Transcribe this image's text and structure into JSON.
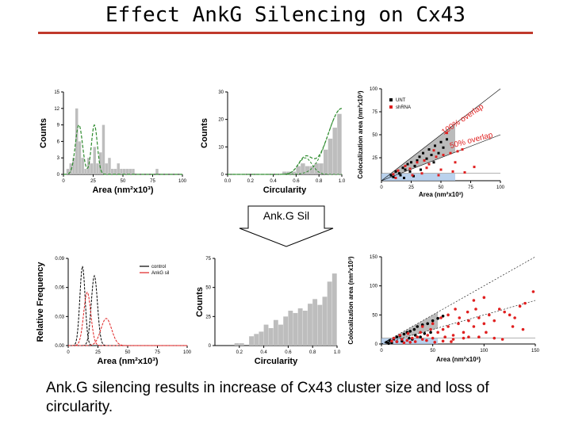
{
  "title": "Effect AnkG Silencing on Cx43",
  "callout": {
    "label": "Ank.G Sil"
  },
  "caption": "Ank.G silencing results in increase of Cx43 cluster size and loss of circularity.",
  "colors": {
    "rule": "#c0392b",
    "bars": "#bdbdbd",
    "fit": "#2e8b2e",
    "red": "#e02020",
    "shade": "#9e9e9e",
    "blue": "#a9c7e8"
  },
  "chart_data": [
    {
      "id": "top-area-histogram",
      "type": "bar",
      "xlabel": "Area (nm²x10³)",
      "ylabel": "Counts",
      "xlim": [
        0,
        100
      ],
      "ylim": [
        0,
        15
      ],
      "xticks": [
        "0",
        "25",
        "50",
        "75",
        "100"
      ],
      "yticks": [
        "0",
        "3",
        "6",
        "9",
        "12",
        "15"
      ],
      "bin_width": 2.5,
      "values": [
        0,
        1,
        2,
        3,
        12,
        6,
        3,
        1,
        3,
        2,
        5,
        2,
        4,
        9,
        2,
        3,
        1,
        1,
        2,
        1,
        1,
        1,
        1,
        1,
        0,
        0,
        0,
        0,
        0,
        0,
        0,
        1,
        0,
        0,
        0,
        0,
        0,
        0,
        0,
        0
      ],
      "fit_peaks": [
        {
          "mu": 13,
          "sigma": 3,
          "amp": 9
        },
        {
          "mu": 26,
          "sigma": 2.5,
          "amp": 9
        }
      ]
    },
    {
      "id": "top-circularity-histogram",
      "type": "bar",
      "xlabel": "Circularity",
      "ylabel": "Counts",
      "xlim": [
        0,
        1
      ],
      "ylim": [
        0,
        30
      ],
      "xticks": [
        "0.0",
        "0.2",
        "0.4",
        "0.6",
        "0.8",
        "1.0"
      ],
      "yticks": [
        "0",
        "10",
        "20",
        "30"
      ],
      "bin_width": 0.04,
      "values": [
        0,
        0,
        0,
        0,
        0,
        0,
        0,
        0,
        0,
        0,
        0,
        0,
        1,
        1,
        1,
        3,
        4,
        3,
        3,
        4,
        4,
        9,
        13,
        17,
        22
      ],
      "fit_peaks": [
        {
          "mu": 0.68,
          "sigma": 0.06,
          "amp": 6
        },
        {
          "mu": 1.0,
          "sigma": 0.12,
          "amp": 24
        }
      ]
    },
    {
      "id": "top-colocalization-scatter",
      "type": "scatter",
      "xlabel": "Area (nm²x10³)",
      "ylabel": "Colocalization area (nm²x10³)",
      "xlim": [
        0,
        100
      ],
      "ylim": [
        0,
        100
      ],
      "xticks": [
        "0",
        "25",
        "50",
        "75",
        "100"
      ],
      "yticks": [
        "25",
        "50",
        "75",
        "100"
      ],
      "legend": [
        "UNT",
        "shRNA"
      ],
      "annotations": [
        "100% overlap",
        "50% overlap"
      ],
      "series": [
        {
          "name": "UNT",
          "color": "#000000",
          "points": [
            [
              8,
              6
            ],
            [
              12,
              10
            ],
            [
              15,
              8
            ],
            [
              18,
              14
            ],
            [
              20,
              12
            ],
            [
              22,
              18
            ],
            [
              25,
              20
            ],
            [
              28,
              16
            ],
            [
              30,
              22
            ],
            [
              32,
              26
            ],
            [
              35,
              30
            ],
            [
              38,
              24
            ],
            [
              40,
              34
            ],
            [
              42,
              28
            ],
            [
              45,
              38
            ],
            [
              48,
              30
            ],
            [
              50,
              42
            ],
            [
              52,
              36
            ],
            [
              10,
              4
            ],
            [
              16,
              6
            ],
            [
              24,
              10
            ],
            [
              33,
              12
            ],
            [
              55,
              45
            ],
            [
              44,
              20
            ],
            [
              27,
              5
            ],
            [
              19,
              3
            ]
          ]
        },
        {
          "name": "shRNA",
          "color": "#e02020",
          "points": [
            [
              10,
              7
            ],
            [
              14,
              11
            ],
            [
              20,
              16
            ],
            [
              24,
              13
            ],
            [
              30,
              20
            ],
            [
              36,
              22
            ],
            [
              40,
              18
            ],
            [
              46,
              26
            ],
            [
              52,
              28
            ],
            [
              58,
              30
            ],
            [
              64,
              32
            ],
            [
              68,
              34
            ],
            [
              60,
              10
            ],
            [
              50,
              12
            ],
            [
              34,
              8
            ],
            [
              26,
              6
            ],
            [
              78,
              15
            ],
            [
              55,
              52
            ],
            [
              62,
              20
            ],
            [
              44,
              33
            ],
            [
              70,
              9
            ],
            [
              48,
              6
            ],
            [
              12,
              3
            ],
            [
              38,
              14
            ]
          ]
        }
      ]
    },
    {
      "id": "bottom-frequency-curves",
      "type": "line",
      "xlabel": "Area (nm²x10³)",
      "ylabel": "Relative Frequency",
      "xlim": [
        0,
        100
      ],
      "ylim": [
        0,
        0.09
      ],
      "xticks": [
        "0",
        "25",
        "50",
        "75",
        "100"
      ],
      "yticks": [
        "0.00",
        "0.03",
        "0.06",
        "0.09"
      ],
      "legend": [
        "control",
        "AnkG sil"
      ],
      "series": [
        {
          "name": "control",
          "color": "#000000",
          "peaks": [
            {
              "mu": 12,
              "sigma": 2.2,
              "amp": 0.082
            },
            {
              "mu": 22,
              "sigma": 2.6,
              "amp": 0.072
            }
          ]
        },
        {
          "name": "AnkG sil",
          "color": "#e02020",
          "peaks": [
            {
              "mu": 16,
              "sigma": 3,
              "amp": 0.055
            },
            {
              "mu": 32,
              "sigma": 4.5,
              "amp": 0.028
            }
          ]
        }
      ]
    },
    {
      "id": "bottom-circularity-histogram",
      "type": "bar",
      "xlabel": "Circularity",
      "ylabel": "Counts",
      "xlim": [
        0,
        1
      ],
      "ylim": [
        0,
        75
      ],
      "xticks": [
        "0.2",
        "0.4",
        "0.6",
        "0.8",
        "1.0"
      ],
      "yticks": [
        "0",
        "25",
        "50",
        "75"
      ],
      "bin_width": 0.04,
      "values": [
        0,
        0,
        0,
        0,
        2,
        2,
        0,
        8,
        10,
        12,
        18,
        15,
        22,
        18,
        25,
        30,
        28,
        32,
        30,
        36,
        40,
        35,
        42,
        55,
        62
      ]
    },
    {
      "id": "bottom-colocalization-scatter",
      "type": "scatter",
      "xlabel": "Area (nm²x10³)",
      "ylabel": "Colocalization area (nm²x10³)",
      "xlim": [
        0,
        150
      ],
      "ylim": [
        0,
        150
      ],
      "xticks": [
        "0",
        "50",
        "100",
        "150"
      ],
      "yticks": [
        "0",
        "50",
        "100",
        "150"
      ],
      "series": [
        {
          "name": "control",
          "color": "#000000",
          "points": [
            [
              5,
              3
            ],
            [
              8,
              6
            ],
            [
              12,
              9
            ],
            [
              15,
              12
            ],
            [
              18,
              14
            ],
            [
              22,
              17
            ],
            [
              25,
              20
            ],
            [
              28,
              22
            ],
            [
              32,
              25
            ],
            [
              35,
              30
            ],
            [
              40,
              33
            ],
            [
              45,
              35
            ],
            [
              50,
              40
            ],
            [
              10,
              2
            ],
            [
              20,
              5
            ],
            [
              30,
              8
            ],
            [
              38,
              12
            ],
            [
              42,
              18
            ],
            [
              55,
              44
            ],
            [
              60,
              48
            ],
            [
              15,
              4
            ],
            [
              27,
              10
            ],
            [
              48,
              20
            ],
            [
              33,
              15
            ],
            [
              7,
              1
            ]
          ]
        },
        {
          "name": "AnkG sil",
          "color": "#e02020",
          "points": [
            [
              10,
              5
            ],
            [
              15,
              4
            ],
            [
              20,
              8
            ],
            [
              25,
              6
            ],
            [
              30,
              10
            ],
            [
              35,
              12
            ],
            [
              40,
              8
            ],
            [
              45,
              15
            ],
            [
              50,
              10
            ],
            [
              55,
              20
            ],
            [
              60,
              25
            ],
            [
              65,
              30
            ],
            [
              70,
              15
            ],
            [
              75,
              35
            ],
            [
              80,
              20
            ],
            [
              85,
              40
            ],
            [
              90,
              30
            ],
            [
              95,
              45
            ],
            [
              100,
              35
            ],
            [
              105,
              50
            ],
            [
              110,
              40
            ],
            [
              115,
              60
            ],
            [
              120,
              55
            ],
            [
              125,
              50
            ],
            [
              130,
              45
            ],
            [
              135,
              65
            ],
            [
              140,
              70
            ],
            [
              148,
              90
            ],
            [
              100,
              80
            ],
            [
              90,
              75
            ],
            [
              60,
              5
            ],
            [
              70,
              8
            ],
            [
              80,
              10
            ],
            [
              85,
              12
            ],
            [
              110,
              10
            ],
            [
              118,
              8
            ],
            [
              40,
              30
            ],
            [
              50,
              35
            ],
            [
              58,
              45
            ],
            [
              65,
              50
            ],
            [
              72,
              60
            ],
            [
              12,
              10
            ],
            [
              18,
              15
            ],
            [
              22,
              2
            ],
            [
              28,
              3
            ],
            [
              33,
              4
            ],
            [
              44,
              6
            ],
            [
              52,
              3
            ],
            [
              68,
              4
            ],
            [
              95,
              12
            ],
            [
              102,
              20
            ],
            [
              128,
              30
            ],
            [
              138,
              25
            ],
            [
              76,
              45
            ],
            [
              84,
              55
            ],
            [
              92,
              60
            ],
            [
              62,
              12
            ],
            [
              38,
              20
            ],
            [
              26,
              18
            ],
            [
              48,
              25
            ]
          ]
        }
      ]
    }
  ]
}
